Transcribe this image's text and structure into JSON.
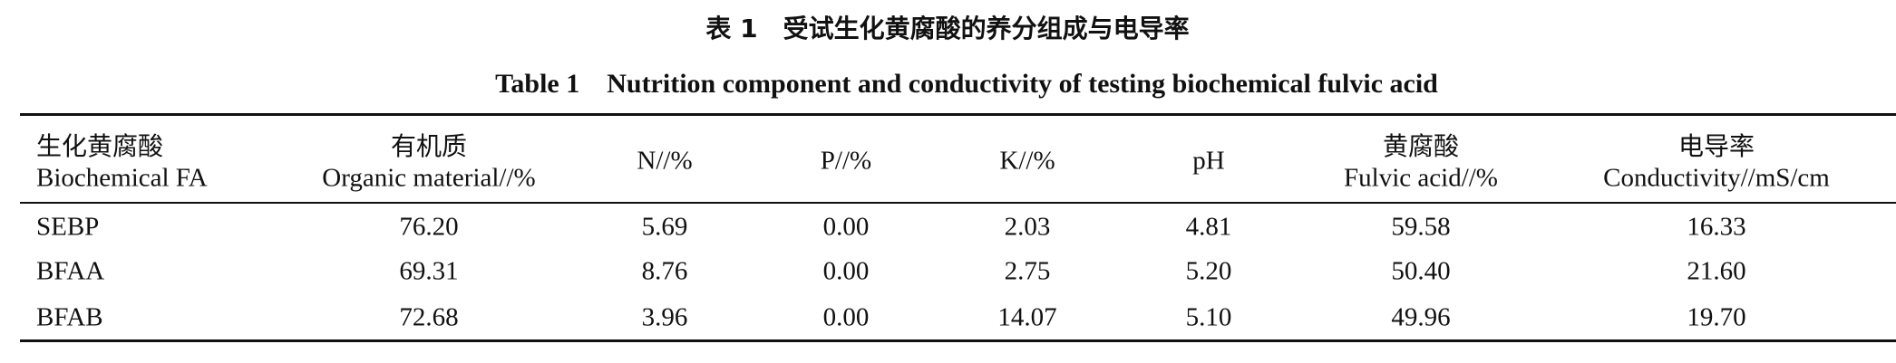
{
  "header": {
    "title_cn": "表 1　受试生化黄腐酸的养分组成与电导率",
    "title_en": "Table 1　Nutrition component and conductivity of testing biochemical fulvic acid"
  },
  "table": {
    "columns": [
      {
        "zh": "生化黄腐酸",
        "en": "Biochemical FA"
      },
      {
        "zh": "有机质",
        "en": "Organic material//%"
      },
      {
        "en": "N//%"
      },
      {
        "en": "P//%"
      },
      {
        "en": "K//%"
      },
      {
        "en": "pH"
      },
      {
        "zh": "黄腐酸",
        "en": "Fulvic acid//%"
      },
      {
        "zh": "电导率",
        "en": "Conductivity//mS/cm"
      }
    ],
    "rows": [
      [
        "SEBP",
        "76.20",
        "5.69",
        "0.00",
        "2.03",
        "4.81",
        "59.58",
        "16.33"
      ],
      [
        "BFAA",
        "69.31",
        "8.76",
        "0.00",
        "2.75",
        "5.20",
        "50.40",
        "21.60"
      ],
      [
        "BFAB",
        "72.68",
        "3.96",
        "0.00",
        "14.07",
        "5.10",
        "49.96",
        "19.70"
      ]
    ]
  }
}
